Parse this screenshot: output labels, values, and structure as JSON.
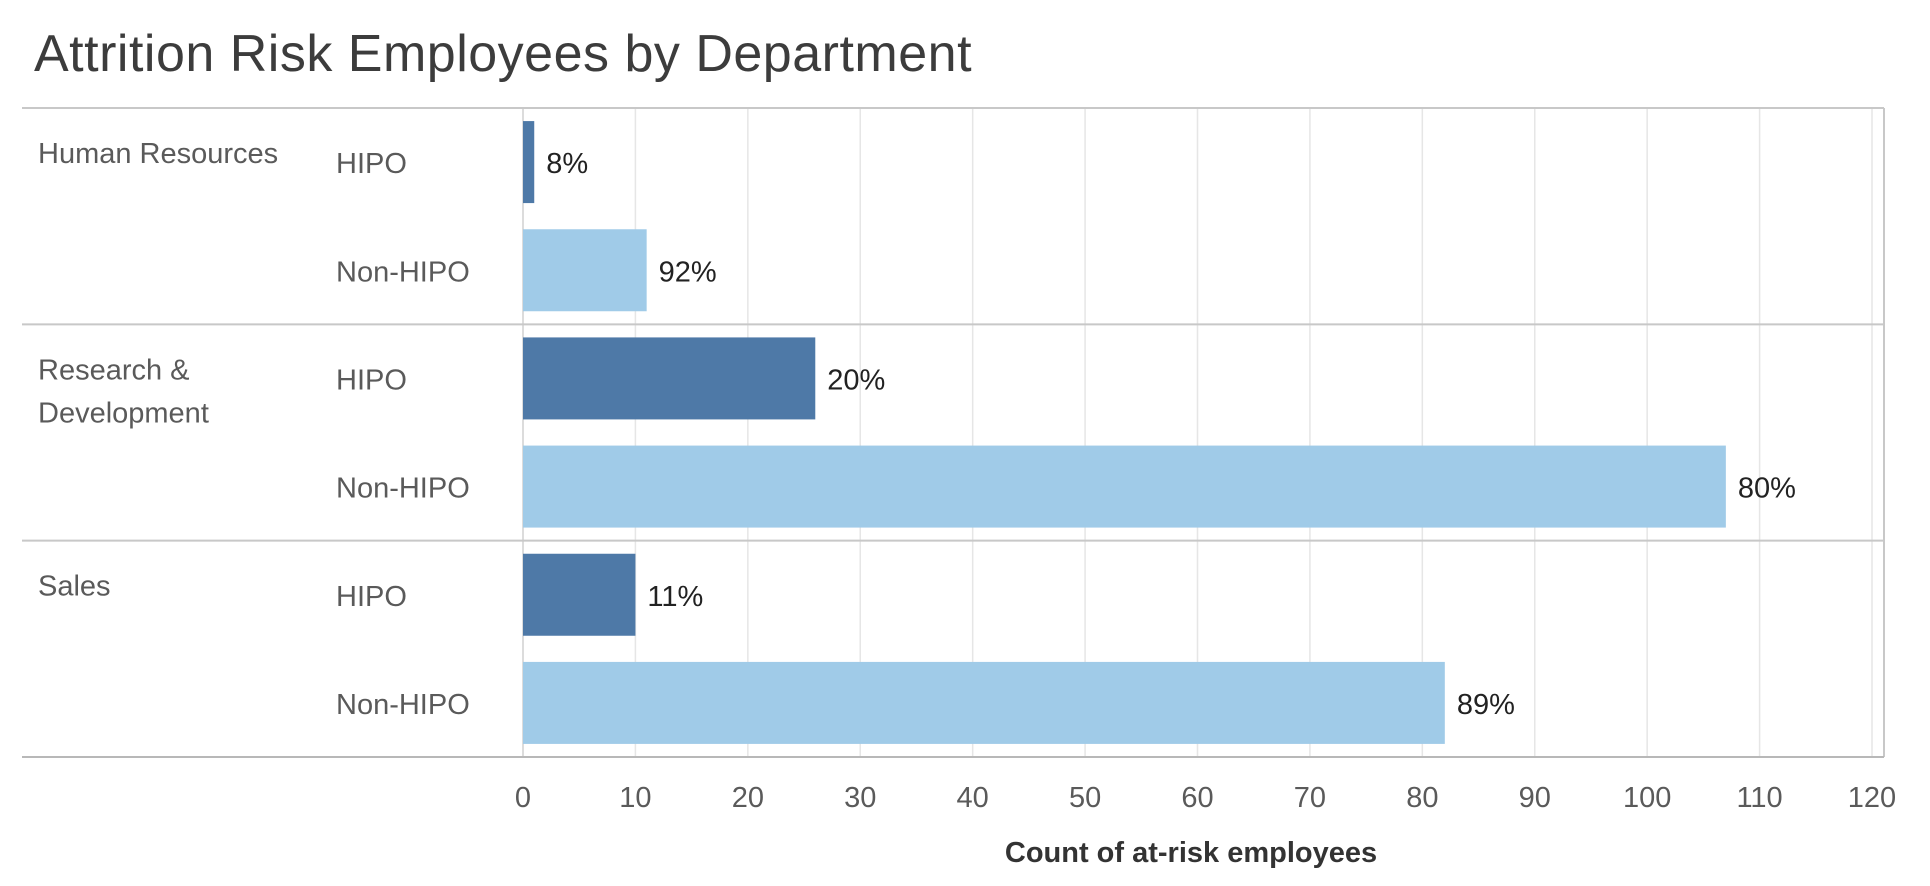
{
  "title": "Attrition Risk Employees by Department",
  "chart_data": {
    "type": "bar",
    "orientation": "horizontal",
    "xlabel": "Count of at-risk employees",
    "xlim": [
      0,
      120
    ],
    "xticks": [
      0,
      10,
      20,
      30,
      40,
      50,
      60,
      70,
      80,
      90,
      100,
      110,
      120
    ],
    "grid": true,
    "colors": {
      "HIPO": "#4e79a7",
      "Non-HIPO": "#a0cbe8"
    },
    "groups": [
      {
        "department": "Human Resources",
        "bars": [
          {
            "segment": "HIPO",
            "value": 1,
            "label": "8%"
          },
          {
            "segment": "Non-HIPO",
            "value": 11,
            "label": "92%"
          }
        ]
      },
      {
        "department": "Research & Development",
        "department_lines": [
          "Research &",
          "Development"
        ],
        "bars": [
          {
            "segment": "HIPO",
            "value": 26,
            "label": "20%"
          },
          {
            "segment": "Non-HIPO",
            "value": 107,
            "label": "80%"
          }
        ]
      },
      {
        "department": "Sales",
        "bars": [
          {
            "segment": "HIPO",
            "value": 10,
            "label": "11%"
          },
          {
            "segment": "Non-HIPO",
            "value": 82,
            "label": "89%"
          }
        ]
      }
    ]
  }
}
